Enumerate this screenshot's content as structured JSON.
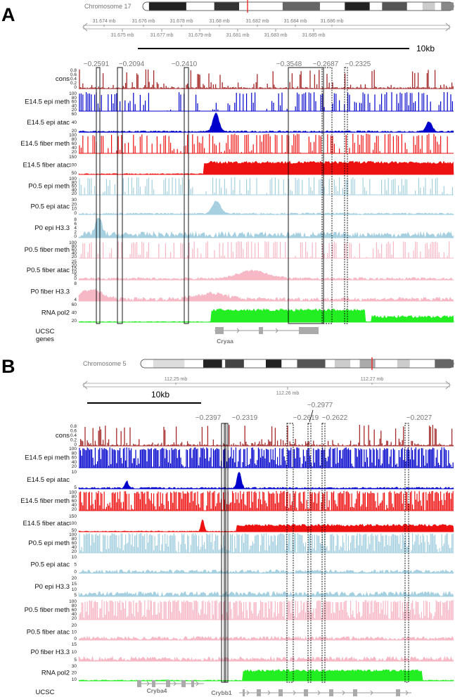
{
  "figure": {
    "panels": [
      {
        "letter": "A",
        "chromosome": "Chromosome 17",
        "axis_top_ticks": [
          "31.674 mb",
          "31.676 mb",
          "31.678 mb",
          "31.68 mb",
          "31.682 mb",
          "31.684 mb",
          "31.686 mb"
        ],
        "axis_bottom_ticks": [
          "31.675 mb",
          "31.677 mb",
          "31.679 mb",
          "31.681 mb",
          "31.683 mb",
          "31.685 mb"
        ],
        "scale_label": "10kb",
        "region_labels": [
          "−0.2591",
          "−0.2094",
          "−0.2410",
          "−0.3548",
          "−0.2687",
          "−0.2325"
        ],
        "genes": [
          "Cryaa"
        ],
        "gene_track_label": "UCSC\ngenes"
      },
      {
        "letter": "B",
        "chromosome": "Chromosome 5",
        "axis_top_ticks": [
          "112.25 mb",
          "112.27 mb"
        ],
        "axis_bottom_ticks": [
          "112.26 mb"
        ],
        "scale_label": "10kb",
        "region_labels": [
          "−0.2397",
          "−0.2319",
          "−0.2619",
          "−0.2977",
          "−0.2622",
          "−0.2027"
        ],
        "genes": [
          "Cryba4",
          "Crybb1"
        ],
        "gene_track_label": "UCSC\ngenes"
      }
    ],
    "colors": {
      "cons": "#a52a2a",
      "e14_epi": "#0000cc",
      "e14_fiber": "#ee1111",
      "p0_epi": "#a6d0e0",
      "p0_fiber": "#f6b8c4",
      "pol2": "#22ee22",
      "gray": "#888888"
    }
  },
  "chart_data": [
    {
      "type": "area",
      "panel": "A",
      "tracks": [
        {
          "name": "cons",
          "ticks": [
            "0.8",
            "0.6",
            "0.4",
            "0.2",
            "0"
          ]
        },
        {
          "name": "E14.5 epi meth",
          "ticks": [
            "100",
            "80",
            "60",
            "40",
            "20"
          ]
        },
        {
          "name": "E14.5 epi atac",
          "ticks": [
            "60",
            "40",
            "20"
          ]
        },
        {
          "name": "E14.5 fiber meth",
          "ticks": [
            "100",
            "80",
            "60",
            "40",
            "20"
          ]
        },
        {
          "name": "E14.5 fiber atac",
          "ticks": [
            "150",
            "100",
            "50"
          ]
        },
        {
          "name": "P0.5 epi meth",
          "ticks": [
            "100",
            "80",
            "60",
            "40",
            "20"
          ]
        },
        {
          "name": "P0.5 epi atac",
          "ticks": [
            "30",
            "20",
            "10",
            "0"
          ]
        },
        {
          "name": "P0 epi H3.3",
          "ticks": [
            "8",
            "6",
            "4",
            "2",
            "0"
          ]
        },
        {
          "name": "P0.5 fiber meth",
          "ticks": [
            "100",
            "80",
            "60",
            "40",
            "20"
          ]
        },
        {
          "name": "P0.5 fiber atac",
          "ticks": [
            "25",
            "20",
            "15",
            "10",
            "5",
            "0"
          ]
        },
        {
          "name": "P0 fiber H3.3",
          "ticks": [
            "8",
            "4"
          ]
        },
        {
          "name": "RNA pol2",
          "ticks": [
            "60",
            "40",
            "20"
          ]
        }
      ]
    },
    {
      "type": "area",
      "panel": "B",
      "tracks": [
        {
          "name": "cons",
          "ticks": [
            "0.8",
            "0.6",
            "0.4",
            "0.2",
            "0"
          ]
        },
        {
          "name": "E14.5 epi meth",
          "ticks": [
            "100",
            "80",
            "60",
            "40",
            "20"
          ]
        },
        {
          "name": "E14.5 epi atac",
          "ticks": [
            "10",
            "5"
          ]
        },
        {
          "name": "E14.5 fiber meth",
          "ticks": [
            "100",
            "80",
            "60",
            "40",
            "20"
          ]
        },
        {
          "name": "E14.5 fiber atac",
          "ticks": [
            "150",
            "100",
            "50"
          ]
        },
        {
          "name": "P0.5 epi meth",
          "ticks": [
            "100",
            "80",
            "60",
            "40",
            "20"
          ]
        },
        {
          "name": "P0.5 epi atac",
          "ticks": [
            "10",
            "5",
            "0"
          ]
        },
        {
          "name": "P0 epi H3.3",
          "ticks": [
            "20",
            "15",
            "10",
            "5"
          ]
        },
        {
          "name": "P0.5 fiber meth",
          "ticks": [
            "100",
            "80",
            "60",
            "40",
            "20"
          ]
        },
        {
          "name": "P0.5 fiber atac",
          "ticks": [
            "20",
            "10",
            "0"
          ]
        },
        {
          "name": "P0 fiber H3.3",
          "ticks": [
            "15",
            "10",
            "5"
          ]
        },
        {
          "name": "RNA pol2",
          "ticks": [
            "30",
            "20",
            "10"
          ]
        }
      ]
    }
  ]
}
